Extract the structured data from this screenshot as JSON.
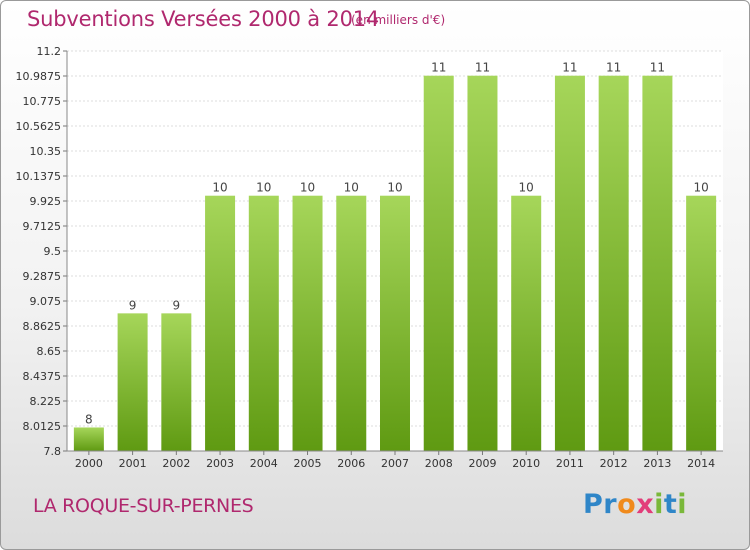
{
  "header": {
    "title": "Subventions Versées 2000 à 2014",
    "subtitle": "(en milliers d'€)"
  },
  "footer": {
    "location": "LA ROQUE-SUR-PERNES",
    "logo_letters": [
      {
        "ch": "P",
        "color": "#2f86c8"
      },
      {
        "ch": "r",
        "color": "#2f86c8"
      },
      {
        "ch": "o",
        "color": "#f08a1c"
      },
      {
        "ch": "x",
        "color": "#e23d7a"
      },
      {
        "ch": "i",
        "color": "#7ab83a"
      },
      {
        "ch": "t",
        "color": "#2f86c8"
      },
      {
        "ch": "i",
        "color": "#7ab83a"
      }
    ]
  },
  "colors": {
    "title": "#b0286e",
    "bar_light": "#a6d65a",
    "bar_dark": "#5f9a12",
    "grid": "#dddddd",
    "axis_text": "#333333"
  },
  "chart_data": {
    "type": "bar",
    "categories": [
      "2000",
      "2001",
      "2002",
      "2003",
      "2004",
      "2005",
      "2006",
      "2007",
      "2008",
      "2009",
      "2010",
      "2011",
      "2012",
      "2013",
      "2014"
    ],
    "values": [
      8.0,
      8.97,
      8.97,
      9.97,
      9.97,
      9.97,
      9.97,
      9.97,
      10.99,
      10.99,
      9.97,
      10.99,
      10.99,
      10.99,
      9.97
    ],
    "data_labels": [
      "8",
      "9",
      "9",
      "10",
      "10",
      "10",
      "10",
      "10",
      "11",
      "11",
      "10",
      "11",
      "11",
      "11",
      "10"
    ],
    "yticks": [
      "7.8",
      "8.0125",
      "8.225",
      "8.4375",
      "8.65",
      "8.8625",
      "9.075",
      "9.2875",
      "9.5",
      "9.7125",
      "9.925",
      "10.1375",
      "10.35",
      "10.5625",
      "10.775",
      "10.9875",
      "11.2"
    ],
    "ylim": [
      7.8,
      11.2
    ],
    "grid": true
  }
}
